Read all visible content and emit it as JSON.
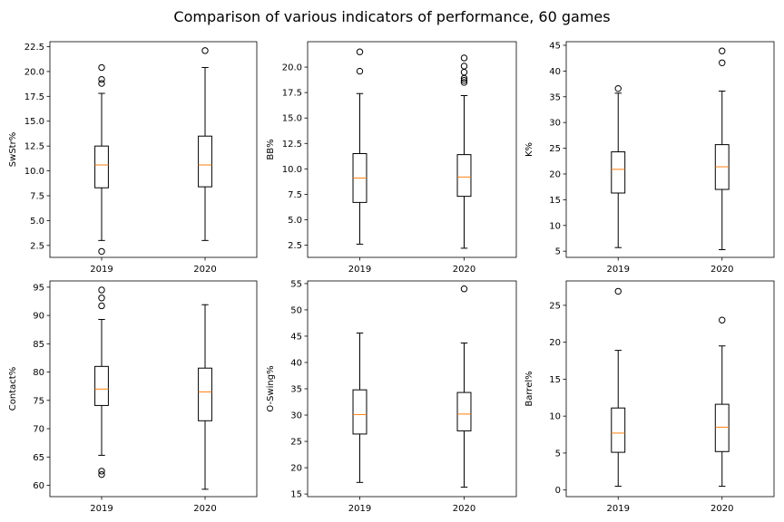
{
  "figure": {
    "title": "Comparison of various indicators of performance, 60 games"
  },
  "colors": {
    "median": "#ff7f0e",
    "box": "#000000",
    "background": "#ffffff"
  },
  "chart_data": [
    {
      "type": "boxplot",
      "ylabel": "SwStr%",
      "categories": [
        "2019",
        "2020"
      ],
      "ylim": [
        1.3,
        23.0
      ],
      "yticks": [
        2.5,
        5.0,
        7.5,
        10.0,
        12.5,
        15.0,
        17.5,
        20.0,
        22.5
      ],
      "tick_decimals": 1,
      "boxes": [
        {
          "q1": 8.3,
          "median": 10.6,
          "q3": 12.5,
          "whislo": 3.0,
          "whishi": 17.8,
          "fliers": [
            1.9,
            18.8,
            19.2,
            20.4
          ]
        },
        {
          "q1": 8.4,
          "median": 10.6,
          "q3": 13.5,
          "whislo": 3.0,
          "whishi": 20.4,
          "fliers": [
            22.1
          ]
        }
      ]
    },
    {
      "type": "boxplot",
      "ylabel": "BB%",
      "categories": [
        "2019",
        "2020"
      ],
      "ylim": [
        1.3,
        22.5
      ],
      "yticks": [
        2.5,
        5.0,
        7.5,
        10.0,
        12.5,
        15.0,
        17.5,
        20.0
      ],
      "tick_decimals": 1,
      "boxes": [
        {
          "q1": 6.7,
          "median": 9.1,
          "q3": 11.5,
          "whislo": 2.6,
          "whishi": 17.4,
          "fliers": [
            19.6,
            21.5
          ]
        },
        {
          "q1": 7.3,
          "median": 9.2,
          "q3": 11.4,
          "whislo": 2.2,
          "whishi": 17.2,
          "fliers": [
            18.5,
            18.7,
            18.9,
            19.5,
            20.1,
            20.9
          ]
        }
      ]
    },
    {
      "type": "boxplot",
      "ylabel": "K%",
      "categories": [
        "2019",
        "2020"
      ],
      "ylim": [
        3.8,
        45.7
      ],
      "yticks": [
        5,
        10,
        15,
        20,
        25,
        30,
        35,
        40,
        45
      ],
      "tick_decimals": 0,
      "boxes": [
        {
          "q1": 16.3,
          "median": 20.9,
          "q3": 24.3,
          "whislo": 5.7,
          "whishi": 35.7,
          "fliers": [
            36.6
          ]
        },
        {
          "q1": 17.0,
          "median": 21.4,
          "q3": 25.7,
          "whislo": 5.3,
          "whishi": 36.1,
          "fliers": [
            41.6,
            43.9
          ]
        }
      ]
    },
    {
      "type": "boxplot",
      "ylabel": "Contact%",
      "categories": [
        "2019",
        "2020"
      ],
      "ylim": [
        58.0,
        96.1
      ],
      "yticks": [
        60,
        65,
        70,
        75,
        80,
        85,
        90,
        95
      ],
      "tick_decimals": 0,
      "boxes": [
        {
          "q1": 74.1,
          "median": 77.0,
          "q3": 81.0,
          "whislo": 65.3,
          "whishi": 89.3,
          "fliers": [
            61.9,
            62.5,
            91.7,
            93.1,
            94.5
          ]
        },
        {
          "q1": 71.4,
          "median": 76.5,
          "q3": 80.7,
          "whislo": 59.3,
          "whishi": 91.9,
          "fliers": []
        }
      ]
    },
    {
      "type": "boxplot",
      "ylabel": "O-Swing%",
      "categories": [
        "2019",
        "2020"
      ],
      "ylim": [
        14.5,
        55.5
      ],
      "yticks": [
        15,
        20,
        25,
        30,
        35,
        40,
        45,
        50,
        55
      ],
      "tick_decimals": 0,
      "boxes": [
        {
          "q1": 26.4,
          "median": 30.1,
          "q3": 34.8,
          "whislo": 17.2,
          "whishi": 45.6,
          "fliers": []
        },
        {
          "q1": 27.0,
          "median": 30.2,
          "q3": 34.3,
          "whislo": 16.3,
          "whishi": 43.7,
          "fliers": [
            54.0
          ]
        }
      ]
    },
    {
      "type": "boxplot",
      "ylabel": "Barrel%",
      "categories": [
        "2019",
        "2020"
      ],
      "ylim": [
        -0.9,
        28.3
      ],
      "yticks": [
        0,
        5,
        10,
        15,
        20,
        25
      ],
      "tick_decimals": 0,
      "boxes": [
        {
          "q1": 5.1,
          "median": 7.7,
          "q3": 11.1,
          "whislo": 0.5,
          "whishi": 18.9,
          "fliers": [
            26.9
          ]
        },
        {
          "q1": 5.2,
          "median": 8.5,
          "q3": 11.6,
          "whislo": 0.5,
          "whishi": 19.5,
          "fliers": [
            23.0
          ]
        }
      ]
    }
  ]
}
